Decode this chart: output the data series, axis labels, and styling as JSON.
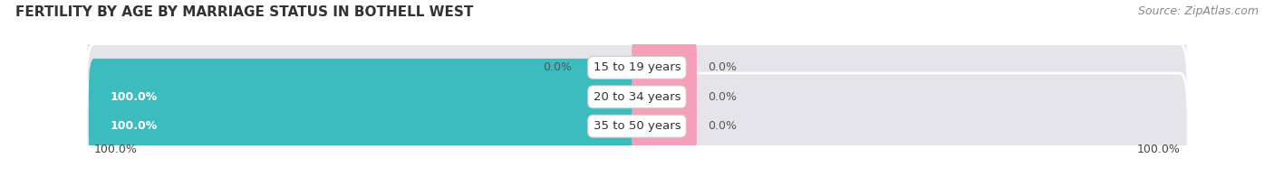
{
  "title": "FERTILITY BY AGE BY MARRIAGE STATUS IN BOTHELL WEST",
  "source": "Source: ZipAtlas.com",
  "categories": [
    "15 to 19 years",
    "20 to 34 years",
    "35 to 50 years"
  ],
  "married_values": [
    0.0,
    100.0,
    100.0
  ],
  "unmarried_values": [
    0.0,
    0.0,
    0.0
  ],
  "married_color": "#3CBCBE",
  "unmarried_color": "#F5A0B8",
  "bar_bg_color": "#E8E8EC",
  "label_left_married": [
    "0.0%",
    "100.0%",
    "100.0%"
  ],
  "label_right_unmarried": [
    "0.0%",
    "0.0%",
    "0.0%"
  ],
  "x_tick_left": "100.0%",
  "x_tick_right": "100.0%",
  "title_fontsize": 11,
  "source_fontsize": 9,
  "bar_label_fontsize": 9,
  "legend_fontsize": 10,
  "bg_color": "#FFFFFF",
  "bar_bg_outer": "#E4E4EA",
  "unmarried_display_pct": 10.0
}
